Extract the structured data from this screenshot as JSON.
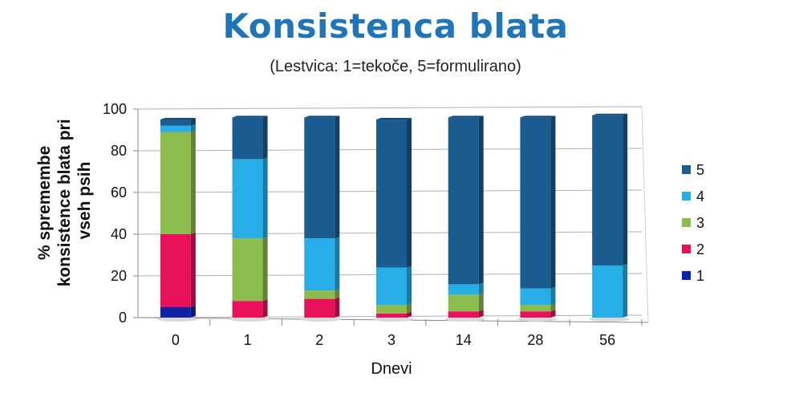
{
  "chart_data": {
    "type": "bar",
    "stacked": true,
    "title": "Konsistenca blata",
    "subtitle": "(Lestvica: 1=tekoče, 5=formulirano)",
    "xlabel": "Dnevi",
    "ylabel_lines": [
      "% spremembe",
      "konsistence blata pri",
      "vseh psih"
    ],
    "ylim": [
      0,
      100
    ],
    "yticks": [
      0,
      20,
      40,
      60,
      80,
      100
    ],
    "grid": true,
    "legend_position": "right",
    "categories": [
      "0",
      "1",
      "2",
      "3",
      "14",
      "28",
      "56"
    ],
    "series": [
      {
        "name": "1",
        "color": "#1022a8",
        "values": [
          5,
          0,
          0,
          0,
          0,
          0,
          0
        ]
      },
      {
        "name": "2",
        "color": "#e8105a",
        "values": [
          35,
          8,
          9,
          2,
          3,
          3,
          0
        ]
      },
      {
        "name": "3",
        "color": "#8cbb4e",
        "values": [
          49,
          30,
          4,
          4,
          8,
          3,
          0
        ]
      },
      {
        "name": "4",
        "color": "#27aee6",
        "values": [
          3,
          38,
          25,
          18,
          5,
          8,
          25
        ]
      },
      {
        "name": "5",
        "color": "#1a5b90",
        "values": [
          3,
          20,
          58,
          71,
          80,
          82,
          72
        ]
      }
    ]
  }
}
